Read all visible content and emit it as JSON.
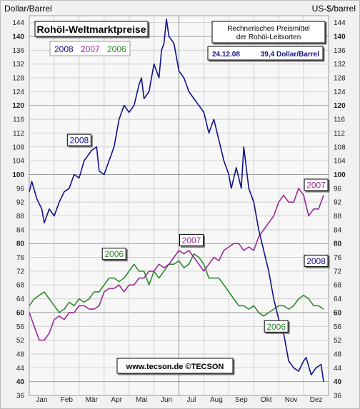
{
  "chart_data": {
    "type": "line",
    "title": "Rohöl-Weltmarktpreise",
    "subtitle_lines": [
      "Rechnerisches Preismittel",
      "der Rohöl-Leitsorten"
    ],
    "info_box": {
      "date": "24.12.08",
      "value": "39,4 Dollar/Barrel"
    },
    "ylabel_left": "Dollar/Barrel",
    "ylabel_right": "US-$/barrel",
    "footer": "www.tecson.de  ©TECSON",
    "ylim": [
      36,
      146
    ],
    "y_ticks": [
      36,
      40,
      44,
      48,
      52,
      56,
      60,
      64,
      68,
      72,
      76,
      80,
      84,
      88,
      92,
      96,
      100,
      104,
      108,
      112,
      116,
      120,
      124,
      128,
      132,
      136,
      140,
      144
    ],
    "y_bold_ticks": [
      40,
      60,
      80,
      100,
      120,
      140
    ],
    "x_range": [
      1,
      13
    ],
    "months": [
      "Jan",
      "Feb",
      "Mär",
      "Apr",
      "Mai",
      "Jun",
      "Jul",
      "Aug",
      "Sep",
      "Okt",
      "Nov",
      "Dez"
    ],
    "grid": true,
    "legend": [
      "2008",
      "2007",
      "2006"
    ],
    "series": [
      {
        "name": "2008",
        "color": "#12128a",
        "x": [
          1,
          1.1,
          1.3,
          1.5,
          1.6,
          1.8,
          2,
          2.2,
          2.4,
          2.6,
          2.8,
          3,
          3.2,
          3.4,
          3.5,
          3.7,
          3.8,
          4,
          4.2,
          4.4,
          4.6,
          4.8,
          5,
          5.2,
          5.4,
          5.5,
          5.6,
          5.8,
          6,
          6.2,
          6.3,
          6.4,
          6.5,
          6.6,
          6.8,
          7,
          7.2,
          7.4,
          7.6,
          7.8,
          8,
          8.2,
          8.4,
          8.6,
          8.8,
          9,
          9.1,
          9.3,
          9.5,
          9.6,
          9.8,
          10,
          10.2,
          10.4,
          10.6,
          10.8,
          11,
          11.2,
          11.4,
          11.6,
          11.8,
          12,
          12.1,
          12.3,
          12.5,
          12.7,
          12.8
        ],
        "y": [
          95,
          98,
          93,
          90,
          86,
          90,
          88,
          92,
          95,
          96,
          100,
          99,
          104,
          106,
          107,
          108,
          101,
          100,
          104,
          108,
          116,
          120,
          118,
          120,
          126,
          128,
          122,
          124,
          132,
          128,
          136,
          138,
          145,
          140,
          138,
          130,
          128,
          124,
          122,
          120,
          118,
          112,
          116,
          110,
          104,
          100,
          96,
          102,
          96,
          108,
          96,
          92,
          84,
          78,
          72,
          64,
          58,
          54,
          46,
          44,
          43,
          46,
          47,
          42,
          44,
          45,
          40
        ]
      },
      {
        "name": "2007",
        "color": "#9a2a9a",
        "x": [
          1,
          1.2,
          1.4,
          1.6,
          1.8,
          2,
          2.2,
          2.4,
          2.6,
          2.8,
          3,
          3.2,
          3.4,
          3.6,
          3.8,
          4,
          4.2,
          4.4,
          4.6,
          4.8,
          5,
          5.2,
          5.4,
          5.6,
          5.8,
          6,
          6.2,
          6.4,
          6.6,
          6.8,
          7,
          7.2,
          7.4,
          7.6,
          7.8,
          8,
          8.2,
          8.4,
          8.6,
          8.8,
          9,
          9.2,
          9.4,
          9.6,
          9.8,
          10,
          10.2,
          10.4,
          10.6,
          10.8,
          11,
          11.2,
          11.4,
          11.6,
          11.8,
          12,
          12.2,
          12.4,
          12.6,
          12.8
        ],
        "y": [
          60,
          56,
          52,
          52,
          54,
          58,
          59,
          58,
          60,
          60,
          62,
          62,
          61,
          61,
          62,
          66,
          67,
          67,
          68,
          66,
          68,
          68,
          70,
          70,
          72,
          72,
          74,
          73,
          74,
          76,
          78,
          77,
          78,
          76,
          74,
          72,
          74,
          76,
          75,
          78,
          79,
          80,
          80,
          78,
          79,
          78,
          82,
          84,
          86,
          88,
          92,
          94,
          92,
          92,
          96,
          94,
          88,
          90,
          90,
          94
        ]
      },
      {
        "name": "2006",
        "color": "#2e8a2e",
        "x": [
          1,
          1.2,
          1.4,
          1.6,
          1.8,
          2,
          2.2,
          2.4,
          2.6,
          2.8,
          3,
          3.2,
          3.4,
          3.6,
          3.8,
          4,
          4.2,
          4.4,
          4.6,
          4.8,
          5,
          5.2,
          5.4,
          5.6,
          5.8,
          6,
          6.2,
          6.4,
          6.6,
          6.8,
          7,
          7.2,
          7.4,
          7.6,
          7.8,
          8,
          8.2,
          8.4,
          8.6,
          8.8,
          9,
          9.2,
          9.4,
          9.6,
          9.8,
          10,
          10.2,
          10.4,
          10.6,
          10.8,
          11,
          11.2,
          11.4,
          11.6,
          11.8,
          12,
          12.2,
          12.4,
          12.6,
          12.8
        ],
        "y": [
          62,
          64,
          65,
          66,
          64,
          62,
          60,
          61,
          63,
          62,
          64,
          63,
          64,
          66,
          66,
          68,
          70,
          70,
          69,
          70,
          72,
          74,
          72,
          72,
          68,
          72,
          70,
          72,
          74,
          74,
          75,
          73,
          74,
          77,
          76,
          74,
          70,
          70,
          70,
          68,
          66,
          64,
          62,
          62,
          61,
          62,
          60,
          59,
          60,
          61,
          62,
          62,
          61,
          62,
          64,
          65,
          64,
          62,
          62,
          61
        ]
      }
    ],
    "annotations": [
      {
        "text": "2008",
        "x": 3.0,
        "y": 110,
        "series": "2008"
      },
      {
        "text": "2007",
        "x": 7.5,
        "y": 81,
        "series": "2007"
      },
      {
        "text": "2006",
        "x": 4.4,
        "y": 77,
        "series": "2006"
      },
      {
        "text": "2007",
        "x": 12.5,
        "y": 97,
        "series": "2007"
      },
      {
        "text": "2008",
        "x": 12.5,
        "y": 75,
        "series": "2008"
      },
      {
        "text": "2006",
        "x": 10.9,
        "y": 56,
        "series": "2006"
      }
    ]
  }
}
